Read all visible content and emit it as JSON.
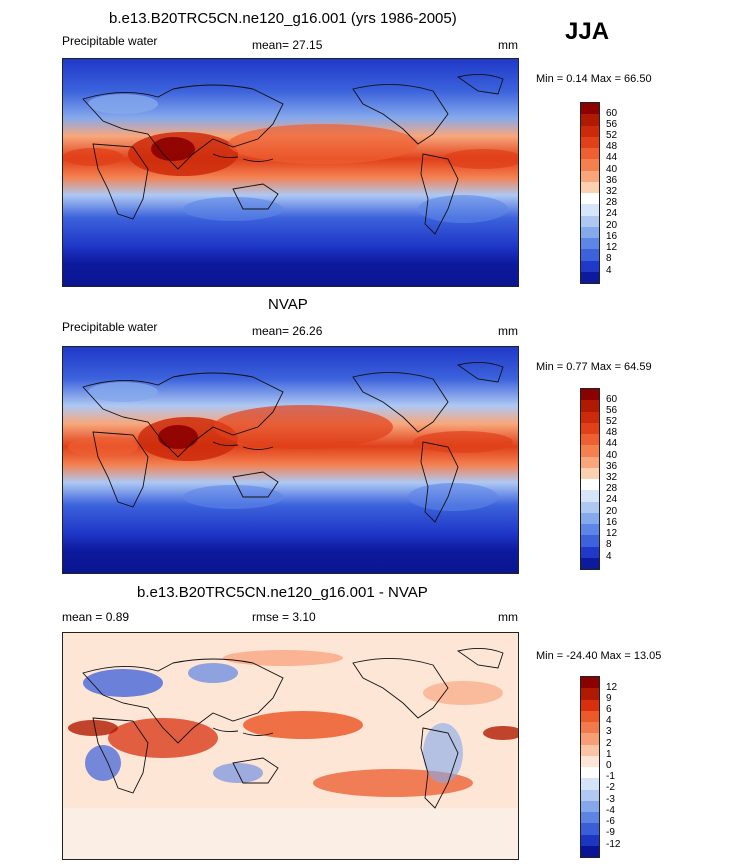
{
  "season": "JJA",
  "panels": [
    {
      "title": "b.e13.B20TRC5CN.ne120_g16.001 (yrs 1986-2005)",
      "left_label": "Precipitable water",
      "mean_label": "mean=  27.15",
      "units": "mm",
      "minmax": "Min =   0.14 Max =  66.50",
      "colorbar": {
        "labels": [
          "60",
          "56",
          "52",
          "48",
          "44",
          "40",
          "36",
          "32",
          "28",
          "24",
          "20",
          "16",
          "12",
          "8",
          "4"
        ],
        "colors": [
          "#8b0000",
          "#b01a00",
          "#cc2a0a",
          "#e0401a",
          "#ee6032",
          "#f48050",
          "#f8a77c",
          "#fbd1b2",
          "#ffffff",
          "#d7e5fb",
          "#aec8f3",
          "#86a9ec",
          "#5e86e6",
          "#3c62dc",
          "#2039c8",
          "#0d1a9e"
        ]
      },
      "stats": {
        "mean": 27.15,
        "min": 0.14,
        "max": 66.5
      }
    },
    {
      "title": "NVAP",
      "left_label": "Precipitable water",
      "mean_label": "mean=  26.26",
      "units": "mm",
      "minmax": "Min =   0.77 Max =  64.59",
      "colorbar": {
        "labels": [
          "60",
          "56",
          "52",
          "48",
          "44",
          "40",
          "36",
          "32",
          "28",
          "24",
          "20",
          "16",
          "12",
          "8",
          "4"
        ],
        "colors": [
          "#8b0000",
          "#b01a00",
          "#cc2a0a",
          "#e0401a",
          "#ee6032",
          "#f48050",
          "#f8a77c",
          "#fbd1b2",
          "#ffffff",
          "#d7e5fb",
          "#aec8f3",
          "#86a9ec",
          "#5e86e6",
          "#3c62dc",
          "#2039c8",
          "#0d1a9e"
        ]
      },
      "stats": {
        "mean": 26.26,
        "min": 0.77,
        "max": 64.59
      }
    },
    {
      "title": "b.e13.B20TRC5CN.ne120_g16.001 - NVAP",
      "left_label": "mean =   0.89",
      "mean_label": "rmse =   3.10",
      "units": "mm",
      "minmax": "Min = -24.40 Max =  13.05",
      "colorbar": {
        "labels": [
          "12",
          "9",
          "6",
          "4",
          "3",
          "2",
          "1",
          "0",
          "-1",
          "-2",
          "-3",
          "-4",
          "-6",
          "-9",
          "-12"
        ],
        "colors": [
          "#8b0000",
          "#b01a00",
          "#d8300e",
          "#ec5a2c",
          "#f37a4c",
          "#f89e76",
          "#fbc4a6",
          "#fde6d6",
          "#ffffff",
          "#d6e4fa",
          "#b0c8f2",
          "#86a8ea",
          "#5e84e2",
          "#3a5ed8",
          "#1d36c2",
          "#0a1596"
        ]
      },
      "stats": {
        "mean": 0.89,
        "rmse": 3.1,
        "min": -24.4,
        "max": 13.05
      }
    }
  ]
}
